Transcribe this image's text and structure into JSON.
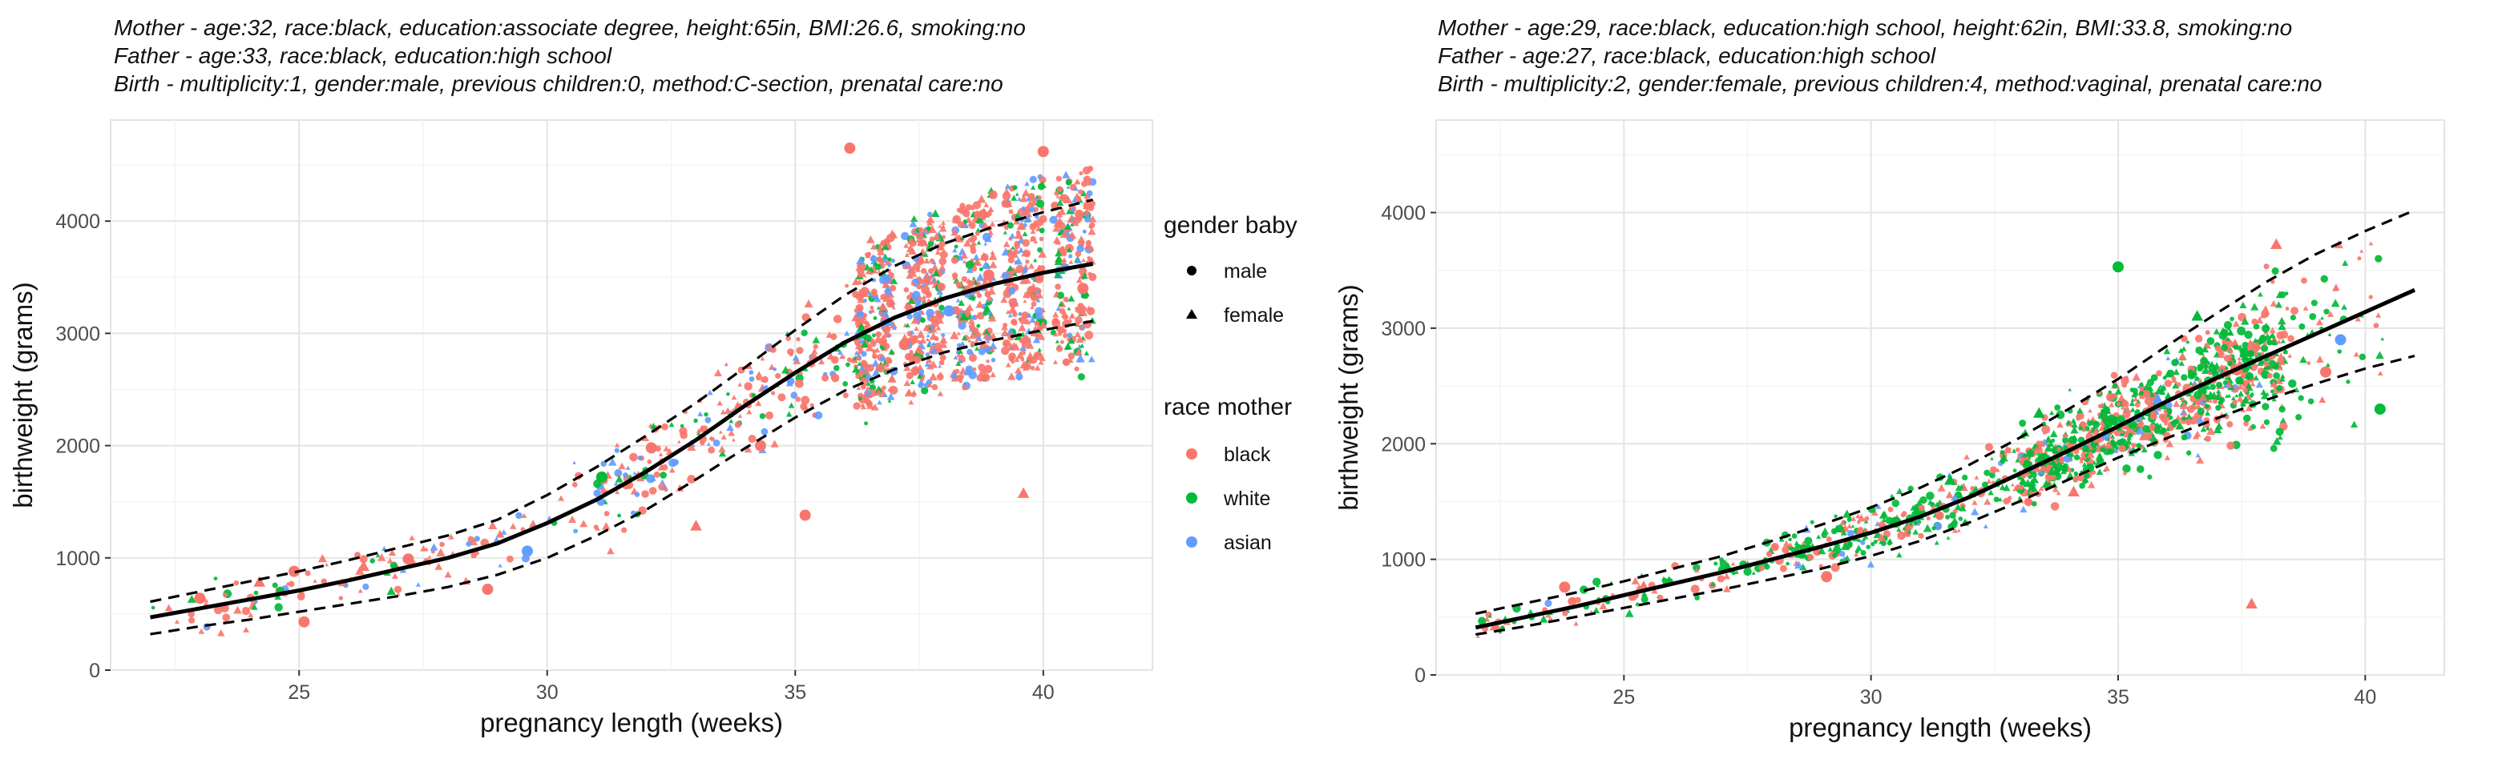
{
  "chart_data": [
    {
      "type": "scatter",
      "subtitle_lines": [
        "Mother - age:32, race:black, education:associate degree, height:65in, BMI:26.6, smoking:no",
        "Father - age:33, race:black, education:high school",
        "Birth - multiplicity:1, gender:male, previous children:0, method:C-section, prenatal care:no"
      ],
      "xlabel": "pregnancy length (weeks)",
      "ylabel": "birthweight (grams)",
      "xlim": [
        21.2,
        42.2
      ],
      "ylim": [
        0,
        4900
      ],
      "xticks": [
        25,
        30,
        35,
        40
      ],
      "yticks": [
        0,
        1000,
        2000,
        3000,
        4000
      ],
      "grid": true,
      "legend": {
        "position": "right",
        "gender_title": "gender baby",
        "gender_items": [
          {
            "label": "male",
            "shape": "circle"
          },
          {
            "label": "female",
            "shape": "triangle"
          }
        ],
        "race_title": "race mother",
        "race_items": [
          {
            "label": "black",
            "color": "#F8766D"
          },
          {
            "label": "white",
            "color": "#00BA38"
          },
          {
            "label": "asian",
            "color": "#619CFF"
          }
        ]
      },
      "prediction": {
        "x": [
          22,
          23,
          24,
          25,
          26,
          27,
          28,
          29,
          30,
          31,
          32,
          33,
          34,
          35,
          36,
          37,
          38,
          39,
          40,
          41
        ],
        "y": [
          470,
          550,
          630,
          710,
          800,
          900,
          1000,
          1130,
          1310,
          1520,
          1770,
          2050,
          2360,
          2650,
          2920,
          3140,
          3310,
          3440,
          3540,
          3620
        ]
      },
      "interval": {
        "x": [
          22,
          23,
          24,
          25,
          26,
          27,
          28,
          29,
          30,
          31,
          32,
          33,
          34,
          35,
          36,
          37,
          38,
          39,
          40,
          41
        ],
        "lower": [
          320,
          390,
          450,
          520,
          590,
          660,
          740,
          850,
          1000,
          1200,
          1430,
          1700,
          1980,
          2250,
          2490,
          2680,
          2830,
          2940,
          3030,
          3110
        ],
        "upper": [
          610,
          700,
          790,
          880,
          980,
          1090,
          1200,
          1340,
          1560,
          1810,
          2090,
          2380,
          2700,
          3030,
          3340,
          3600,
          3800,
          3950,
          4080,
          4190
        ]
      },
      "points": [
        {
          "x": 23.0,
          "y": 640,
          "race": "black",
          "gender": "male"
        },
        {
          "x": 24.2,
          "y": 780,
          "race": "black",
          "gender": "female"
        },
        {
          "x": 24.9,
          "y": 880,
          "race": "black",
          "gender": "male"
        },
        {
          "x": 25.1,
          "y": 430,
          "race": "black",
          "gender": "male"
        },
        {
          "x": 26.3,
          "y": 920,
          "race": "black",
          "gender": "female"
        },
        {
          "x": 27.2,
          "y": 990,
          "race": "black",
          "gender": "male"
        },
        {
          "x": 28.8,
          "y": 720,
          "race": "black",
          "gender": "male"
        },
        {
          "x": 29.6,
          "y": 1060,
          "race": "asian",
          "gender": "male"
        },
        {
          "x": 31.1,
          "y": 1720,
          "race": "white",
          "gender": "male"
        },
        {
          "x": 32.1,
          "y": 1980,
          "race": "black",
          "gender": "male"
        },
        {
          "x": 33.0,
          "y": 1280,
          "race": "black",
          "gender": "female"
        },
        {
          "x": 34.3,
          "y": 2000,
          "race": "black",
          "gender": "male"
        },
        {
          "x": 35.2,
          "y": 1380,
          "race": "black",
          "gender": "male"
        },
        {
          "x": 36.1,
          "y": 4650,
          "race": "black",
          "gender": "male"
        },
        {
          "x": 37.2,
          "y": 2900,
          "race": "black",
          "gender": "male"
        },
        {
          "x": 38.1,
          "y": 3200,
          "race": "asian",
          "gender": "male"
        },
        {
          "x": 38.9,
          "y": 3520,
          "race": "black",
          "gender": "male"
        },
        {
          "x": 39.6,
          "y": 1570,
          "race": "black",
          "gender": "female"
        },
        {
          "x": 40.0,
          "y": 4620,
          "race": "black",
          "gender": "male"
        },
        {
          "x": 40.8,
          "y": 3400,
          "race": "black",
          "gender": "male"
        }
      ]
    },
    {
      "type": "scatter",
      "subtitle_lines": [
        "Mother - age:29, race:black, education:high school, height:62in, BMI:33.8, smoking:no",
        "Father - age:27, race:black, education:high school",
        "Birth - multiplicity:2, gender:female, previous children:4, method:vaginal, prenatal care:no"
      ],
      "xlabel": "pregnancy length (weeks)",
      "ylabel": "birthweight (grams)",
      "xlim": [
        21.2,
        41.6
      ],
      "ylim": [
        0,
        4800
      ],
      "xticks": [
        25,
        30,
        35,
        40
      ],
      "yticks": [
        0,
        1000,
        2000,
        3000,
        4000
      ],
      "grid": true,
      "prediction": {
        "x": [
          22,
          23,
          24,
          25,
          26,
          27,
          28,
          29,
          30,
          31,
          32,
          33,
          34,
          35,
          36,
          37,
          38,
          39,
          40,
          41
        ],
        "y": [
          410,
          500,
          590,
          690,
          790,
          890,
          1000,
          1110,
          1230,
          1370,
          1540,
          1740,
          1940,
          2150,
          2370,
          2570,
          2760,
          2950,
          3140,
          3330
        ]
      },
      "interval": {
        "x": [
          22,
          23,
          24,
          25,
          26,
          27,
          28,
          29,
          30,
          31,
          32,
          33,
          34,
          35,
          36,
          37,
          38,
          39,
          40,
          41
        ],
        "lower": [
          350,
          420,
          500,
          580,
          660,
          740,
          830,
          920,
          1030,
          1160,
          1320,
          1500,
          1690,
          1880,
          2050,
          2220,
          2380,
          2520,
          2650,
          2760
        ],
        "upper": [
          530,
          620,
          710,
          810,
          920,
          1030,
          1160,
          1300,
          1450,
          1620,
          1820,
          2050,
          2300,
          2560,
          2850,
          3130,
          3400,
          3640,
          3840,
          4020
        ]
      },
      "points": [
        {
          "x": 22.4,
          "y": 420,
          "race": "black",
          "gender": "female"
        },
        {
          "x": 23.8,
          "y": 760,
          "race": "black",
          "gender": "male"
        },
        {
          "x": 25.4,
          "y": 760,
          "race": "black",
          "gender": "female"
        },
        {
          "x": 27.1,
          "y": 920,
          "race": "white",
          "gender": "female"
        },
        {
          "x": 29.1,
          "y": 850,
          "race": "black",
          "gender": "male"
        },
        {
          "x": 30.5,
          "y": 1320,
          "race": "white",
          "gender": "male"
        },
        {
          "x": 31.6,
          "y": 1680,
          "race": "white",
          "gender": "female"
        },
        {
          "x": 33.4,
          "y": 2260,
          "race": "white",
          "gender": "female"
        },
        {
          "x": 34.1,
          "y": 1580,
          "race": "black",
          "gender": "female"
        },
        {
          "x": 35.0,
          "y": 3530,
          "race": "white",
          "gender": "male"
        },
        {
          "x": 35.8,
          "y": 2380,
          "race": "asian",
          "gender": "female"
        },
        {
          "x": 36.6,
          "y": 3100,
          "race": "white",
          "gender": "female"
        },
        {
          "x": 37.4,
          "y": 2640,
          "race": "black",
          "gender": "male"
        },
        {
          "x": 37.7,
          "y": 610,
          "race": "black",
          "gender": "female"
        },
        {
          "x": 38.2,
          "y": 3720,
          "race": "black",
          "gender": "female"
        },
        {
          "x": 39.2,
          "y": 2620,
          "race": "black",
          "gender": "male"
        },
        {
          "x": 39.5,
          "y": 2900,
          "race": "asian",
          "gender": "male"
        },
        {
          "x": 40.3,
          "y": 2300,
          "race": "white",
          "gender": "male"
        }
      ]
    }
  ]
}
